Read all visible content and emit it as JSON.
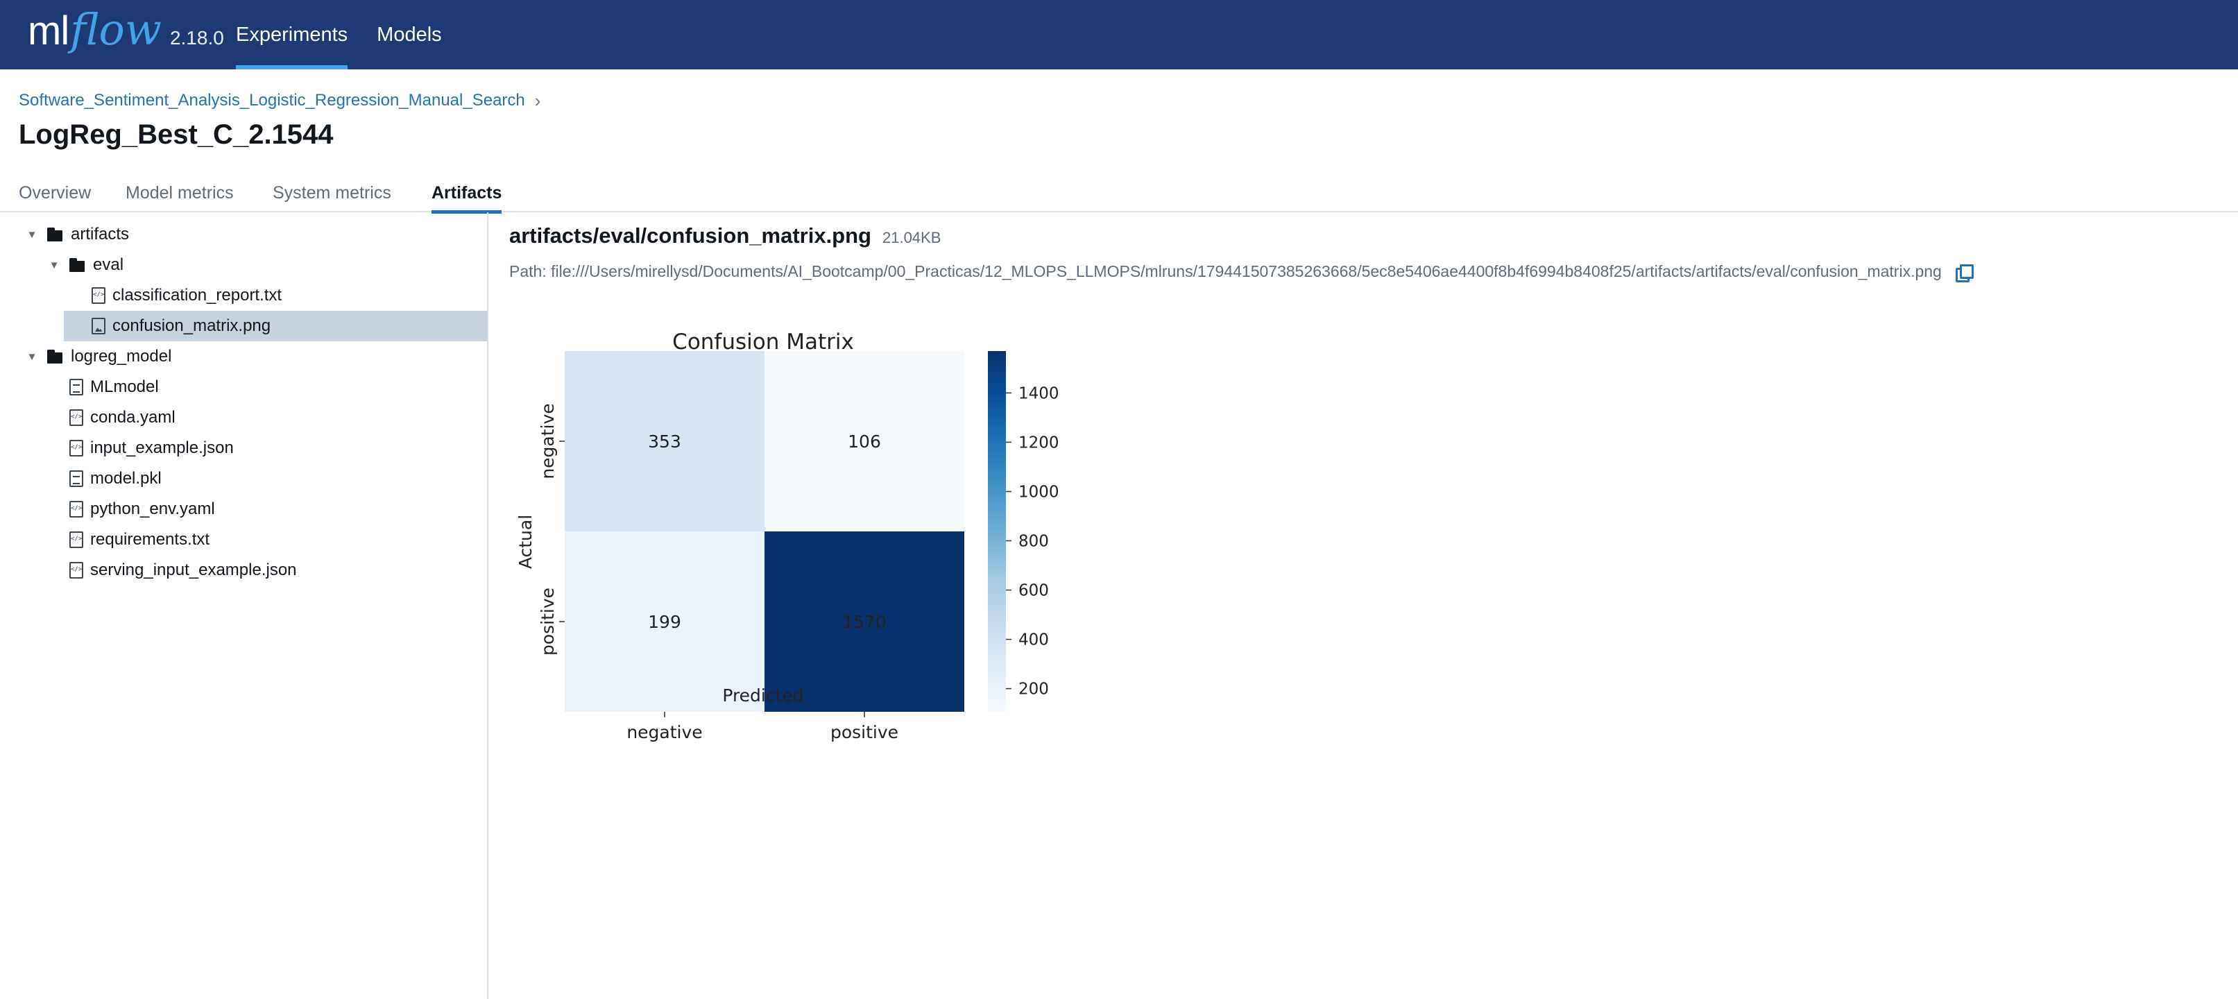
{
  "app": {
    "logo_main": "ml",
    "logo_accent": "flow",
    "version": "2.18.0"
  },
  "topnav": {
    "experiments": "Experiments",
    "models": "Models"
  },
  "breadcrumb": {
    "experiment": "Software_Sentiment_Analysis_Logistic_Regression_Manual_Search",
    "separator": "›"
  },
  "run": {
    "title": "LogReg_Best_C_2.1544"
  },
  "tabs": {
    "overview": "Overview",
    "model_metrics": "Model metrics",
    "system_metrics": "System metrics",
    "artifacts": "Artifacts",
    "active": "Artifacts"
  },
  "tree": [
    {
      "label": "artifacts",
      "type": "folder",
      "expanded": true,
      "depth": 0
    },
    {
      "label": "eval",
      "type": "folder",
      "expanded": true,
      "depth": 1
    },
    {
      "label": "classification_report.txt",
      "type": "code",
      "depth": 2
    },
    {
      "label": "confusion_matrix.png",
      "type": "image",
      "depth": 2,
      "selected": true
    },
    {
      "label": "logreg_model",
      "type": "folder",
      "expanded": true,
      "depth": 0
    },
    {
      "label": "MLmodel",
      "type": "file",
      "depth": 1
    },
    {
      "label": "conda.yaml",
      "type": "code",
      "depth": 1
    },
    {
      "label": "input_example.json",
      "type": "code",
      "depth": 1
    },
    {
      "label": "model.pkl",
      "type": "file",
      "depth": 1
    },
    {
      "label": "python_env.yaml",
      "type": "code",
      "depth": 1
    },
    {
      "label": "requirements.txt",
      "type": "code",
      "depth": 1
    },
    {
      "label": "serving_input_example.json",
      "type": "code",
      "depth": 1
    }
  ],
  "viewer": {
    "file_path": "artifacts/eval/confusion_matrix.png",
    "file_size": "21.04KB",
    "full_path": "Path: file:///Users/mirellysd/Documents/AI_Bootcamp/00_Practicas/12_MLOPS_LLMOPS/mlruns/179441507385263668/5ec8e5406ae4400f8b4f6994b8408f25/artifacts/artifacts/eval/confusion_matrix.png"
  },
  "colors": {
    "header_bg": "#1d3a75",
    "accent": "#2372b6",
    "selected_row": "#c6d2dd"
  },
  "chart_data": {
    "type": "heatmap",
    "title": "Confusion Matrix",
    "xlabel": "Predicted",
    "ylabel": "Actual",
    "x_categories": [
      "negative",
      "positive"
    ],
    "y_categories": [
      "negative",
      "positive"
    ],
    "values": [
      [
        353,
        106
      ],
      [
        199,
        1570
      ]
    ],
    "colormap": "Blues",
    "colorbar_ticks": [
      200,
      400,
      600,
      800,
      1000,
      1200,
      1400
    ],
    "colorbar_range": [
      106,
      1570
    ]
  }
}
